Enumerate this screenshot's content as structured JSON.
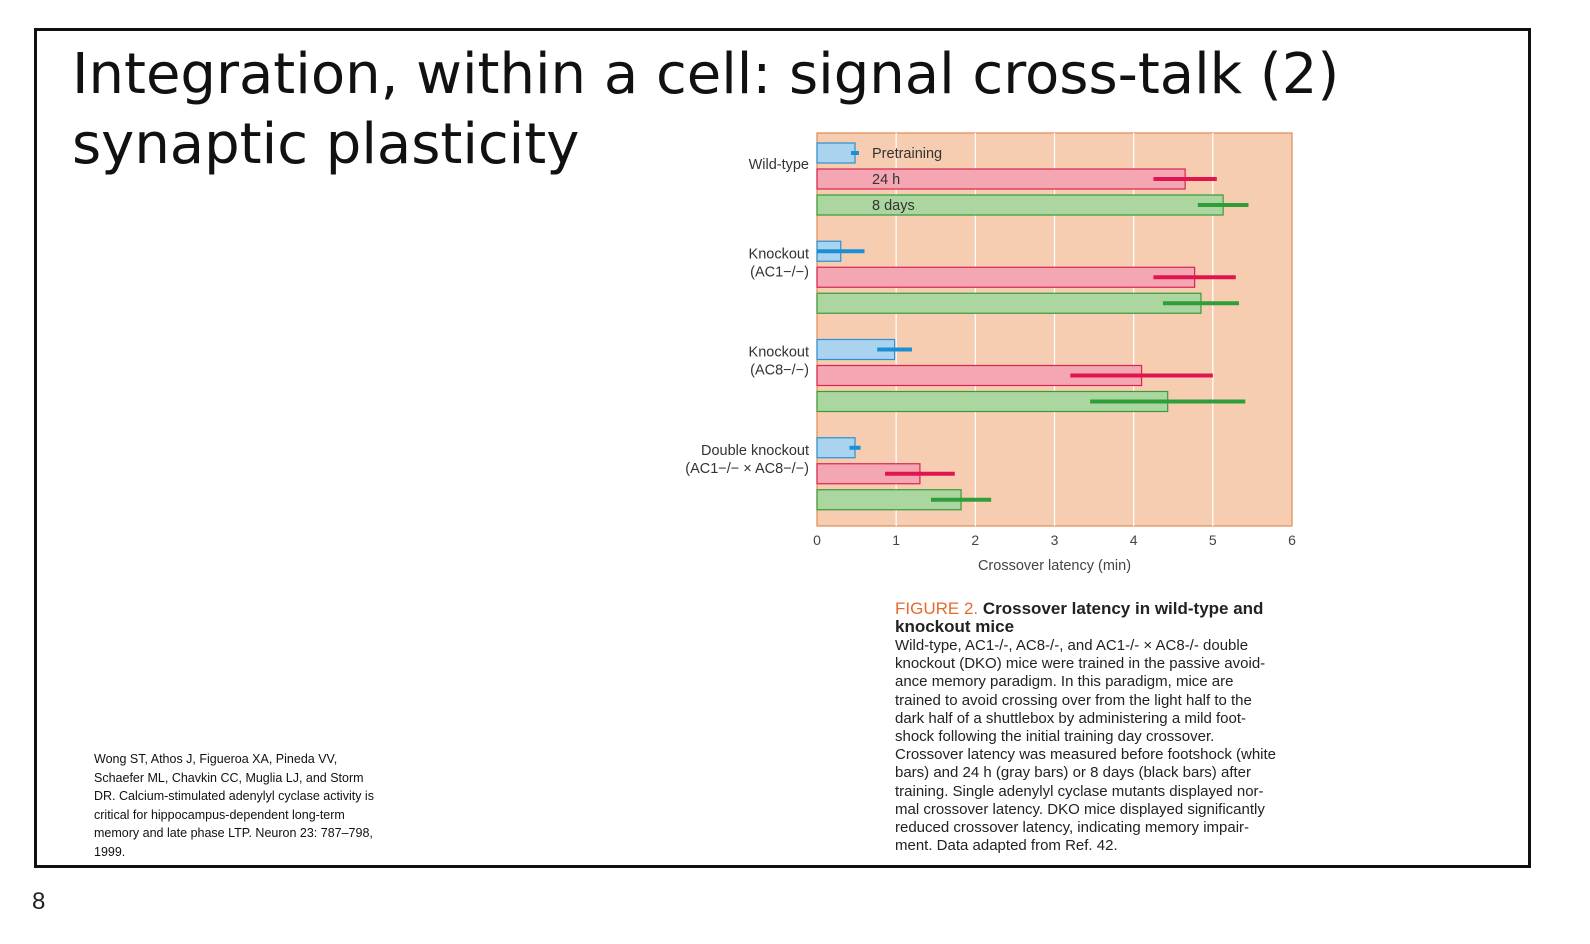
{
  "slide": {
    "title_line1": "Integration, within a cell: signal cross-talk (2)",
    "title_line2": "synaptic plasticity",
    "page_number": "8",
    "reference": "Wong ST, Athos J, Figueroa XA, Pineda VV,\nSchaefer ML, Chavkin CC, Muglia LJ, and Storm\nDR. Calcium-stimulated adenylyl cyclase activity is\ncritical for hippocampus-dependent long-term\nmemory and late phase LTP. Neuron 23: 787–798,\n1999."
  },
  "caption": {
    "figure_label": "FIGURE 2.",
    "title": "Crossover latency in wild-type and knockout mice",
    "body": "Wild-type, AC1-/-, AC8-/-, and AC1-/- × AC8-/- double\nknockout (DKO) mice were trained in the passive avoid-\nance memory paradigm. In this paradigm, mice are\ntrained to avoid crossing over from the light half to the\ndark half of a shuttlebox by administering a mild foot-\nshock following the initial training day crossover.\nCrossover latency was measured before footshock (white\nbars) and 24 h (gray bars) or 8 days (black bars) after\ntraining. Single adenylyl cyclase mutants displayed nor-\nmal crossover latency. DKO mice displayed significantly\nreduced crossover latency, indicating memory impair-\nment. Data adapted from Ref. 42."
  },
  "chart_data": {
    "type": "bar",
    "orientation": "horizontal",
    "xlabel": "Crossover latency (min)",
    "xlim": [
      0,
      6
    ],
    "xticks": [
      0,
      1,
      2,
      3,
      4,
      5,
      6
    ],
    "grid": "vertical",
    "background_color": "#f6cdb0",
    "groups": [
      {
        "label_lines": [
          "Wild-type"
        ]
      },
      {
        "label_lines": [
          "Knockout",
          "(AC1−/−)"
        ]
      },
      {
        "label_lines": [
          "Knockout",
          "(AC8−/−)"
        ]
      },
      {
        "label_lines": [
          "Double knockout",
          "(AC1−/− × AC8−/−)"
        ]
      }
    ],
    "series": [
      {
        "name": "Pretraining",
        "fill": "#a9d3ee",
        "stroke": "#2b8fd3",
        "err_color": "#1a8fd6",
        "values": [
          0.48,
          0.3,
          0.98,
          0.48
        ],
        "err": [
          0.05,
          0.3,
          0.22,
          0.07
        ]
      },
      {
        "name": "24 h",
        "fill": "#f4a6b3",
        "stroke": "#d8244f",
        "err_color": "#e0144e",
        "values": [
          4.65,
          4.77,
          4.1,
          1.3
        ],
        "err": [
          0.4,
          0.52,
          0.9,
          0.44
        ]
      },
      {
        "name": "8 days",
        "fill": "#acd6a0",
        "stroke": "#3a9a3a",
        "err_color": "#2f9e3a",
        "values": [
          5.13,
          4.85,
          4.43,
          1.82
        ],
        "err": [
          0.32,
          0.48,
          0.98,
          0.38
        ]
      }
    ]
  }
}
